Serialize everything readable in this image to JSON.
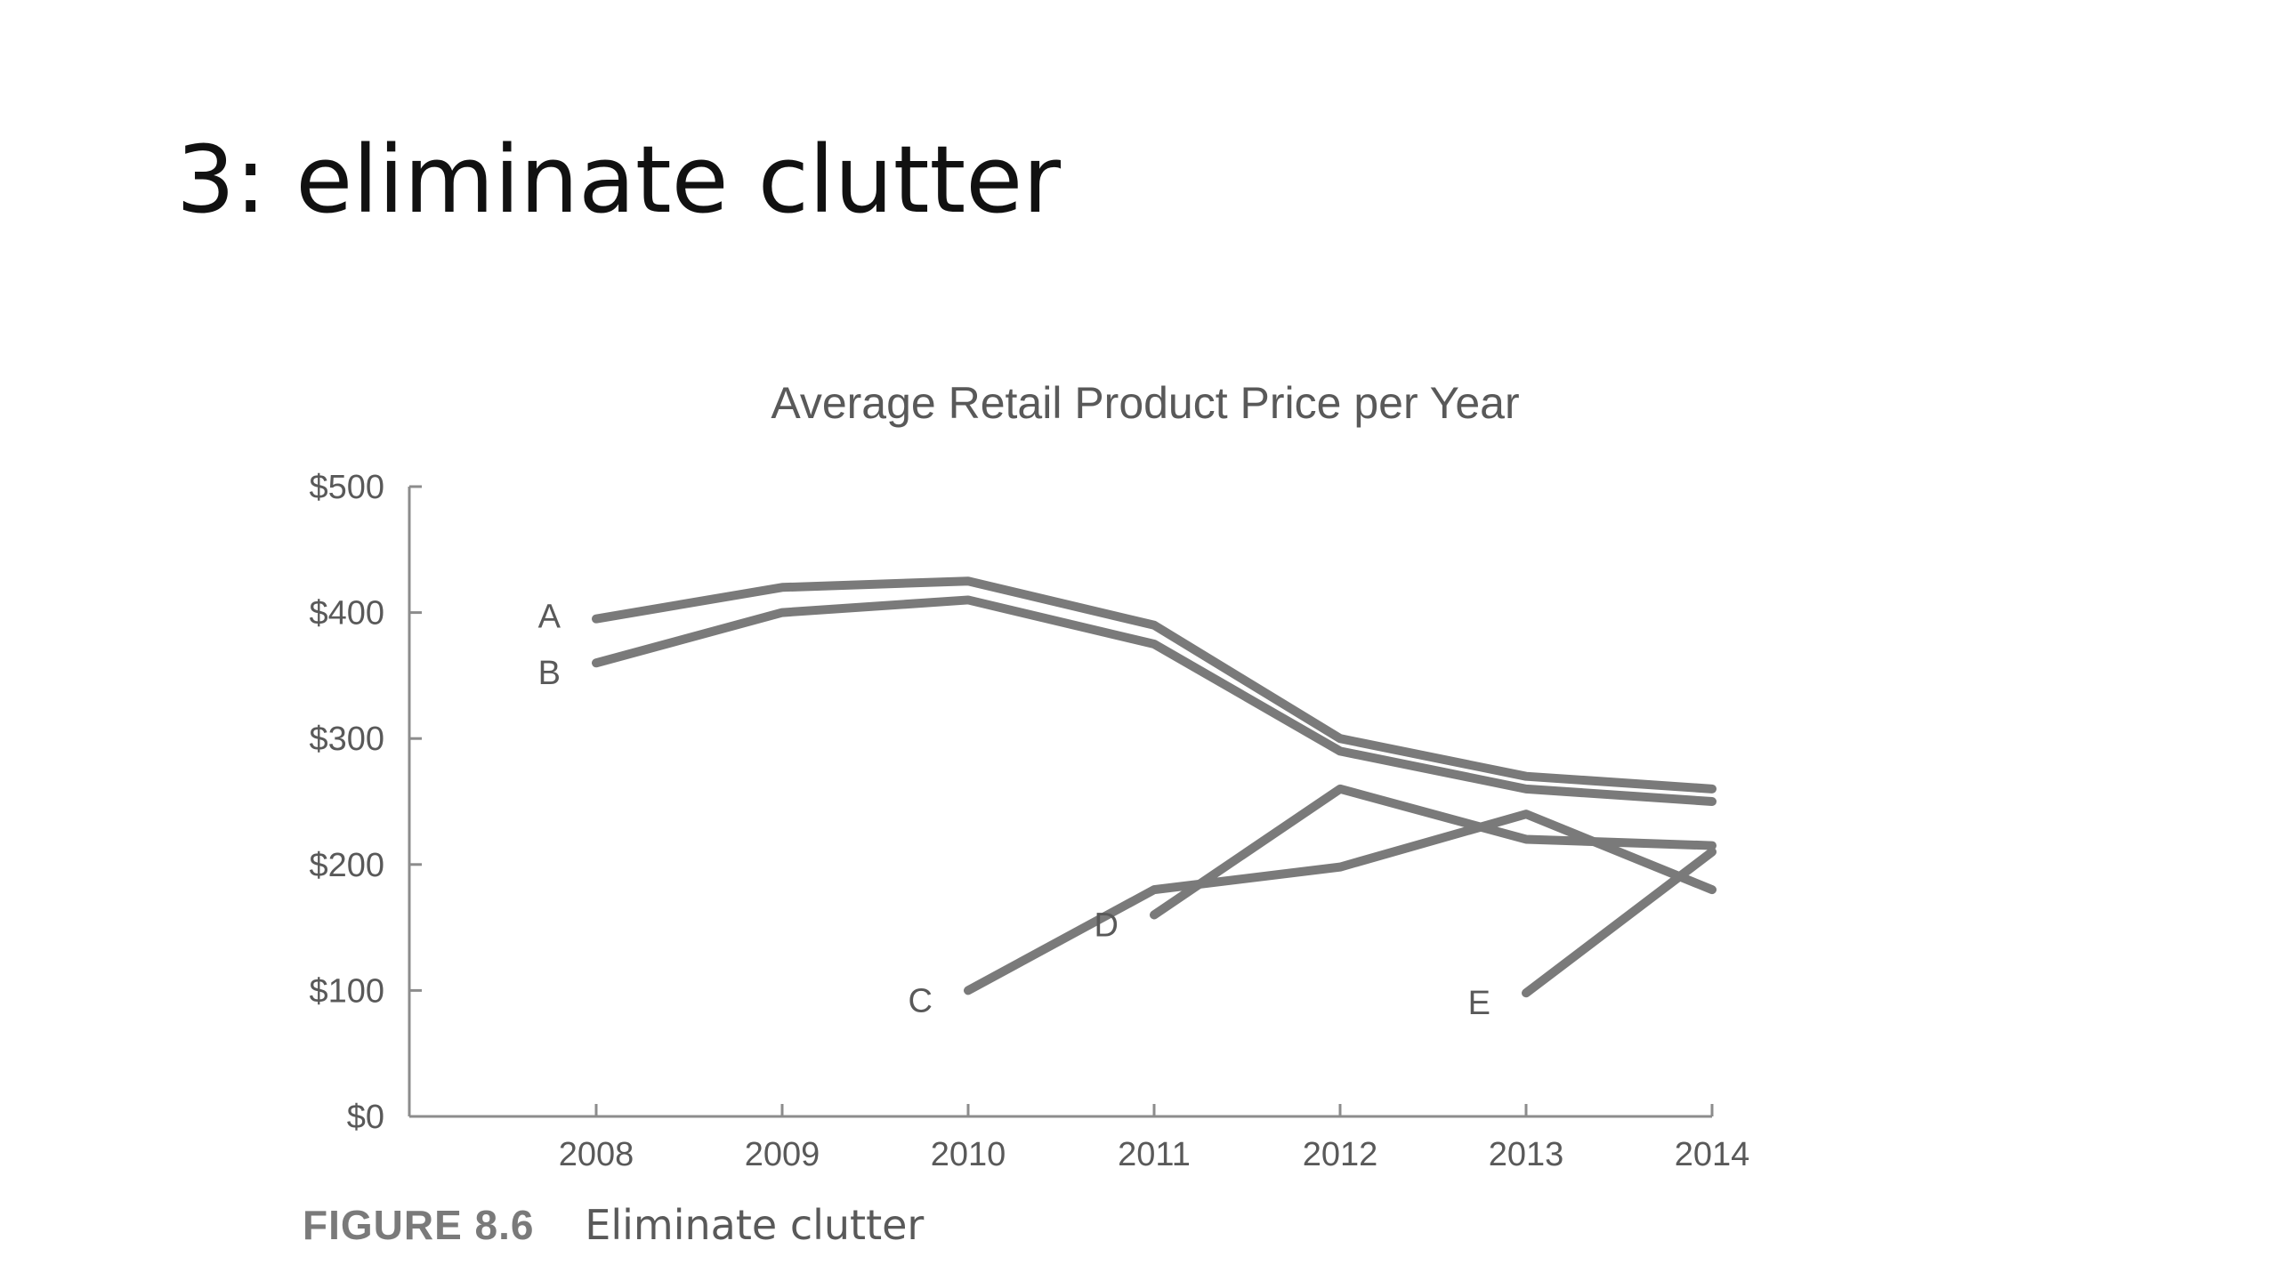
{
  "slide": {
    "title": "3: eliminate clutter"
  },
  "caption": {
    "figure_number": "FIGURE 8.6",
    "text": "Eliminate clutter"
  },
  "colors": {
    "series": "#7a7a7a",
    "axis": "#8c8c8c",
    "text": "#595959"
  },
  "chart_data": {
    "type": "line",
    "title": "Average Retail Product Price per Year",
    "xlabel": "",
    "ylabel": "",
    "x": [
      2008,
      2009,
      2010,
      2011,
      2012,
      2013,
      2014
    ],
    "x_tick_labels": [
      "2008",
      "2009",
      "2010",
      "2011",
      "2012",
      "2013",
      "2014"
    ],
    "ylim": [
      0,
      500
    ],
    "y_ticks": [
      0,
      100,
      200,
      300,
      400,
      500
    ],
    "y_tick_labels": [
      "$0",
      "$100",
      "$200",
      "$300",
      "$400",
      "$500"
    ],
    "grid": false,
    "legend": "none (direct labels)",
    "series": [
      {
        "name": "A",
        "values": [
          395,
          420,
          425,
          390,
          300,
          270,
          260
        ]
      },
      {
        "name": "B",
        "values": [
          360,
          400,
          410,
          375,
          290,
          260,
          250
        ]
      },
      {
        "name": "C",
        "values": [
          null,
          null,
          100,
          180,
          198,
          240,
          180
        ]
      },
      {
        "name": "D",
        "values": [
          null,
          null,
          null,
          160,
          260,
          220,
          215
        ]
      },
      {
        "name": "E",
        "values": [
          null,
          null,
          null,
          null,
          null,
          98,
          210
        ]
      }
    ]
  }
}
